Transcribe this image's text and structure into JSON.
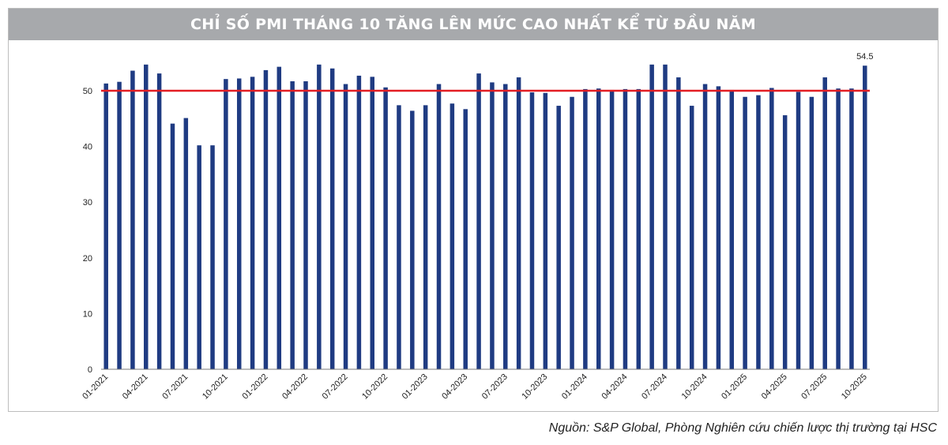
{
  "title": "CHỈ SỐ PMI THÁNG 10 TĂNG LÊN MỨC CAO NHẤT KỂ TỪ ĐẦU NĂM",
  "source": "Nguồn: S&P Global, Phòng Nghiên cứu chiến lược thị trường tại HSC",
  "colors": {
    "bar": "#1f3b82",
    "threshold": "#e31e24",
    "title_bg": "#a7a9ac"
  },
  "chart_data": {
    "type": "bar",
    "ylim": [
      0,
      60
    ],
    "yticks": [
      0,
      10,
      20,
      30,
      40,
      50
    ],
    "threshold": 50,
    "xtick_labels": [
      {
        "index": 0,
        "label": "01-2021"
      },
      {
        "index": 3,
        "label": "04-2021"
      },
      {
        "index": 6,
        "label": "07-2021"
      },
      {
        "index": 9,
        "label": "10-2021"
      },
      {
        "index": 12,
        "label": "01-2022"
      },
      {
        "index": 15,
        "label": "04-2022"
      },
      {
        "index": 18,
        "label": "07-2022"
      },
      {
        "index": 21,
        "label": "10-2022"
      },
      {
        "index": 24,
        "label": "01-2023"
      },
      {
        "index": 27,
        "label": "04-2023"
      },
      {
        "index": 30,
        "label": "07-2023"
      },
      {
        "index": 33,
        "label": "10-2023"
      },
      {
        "index": 36,
        "label": "01-2024"
      },
      {
        "index": 39,
        "label": "04-2024"
      },
      {
        "index": 42,
        "label": "07-2024"
      },
      {
        "index": 45,
        "label": "10-2024"
      },
      {
        "index": 48,
        "label": "01-2025"
      },
      {
        "index": 51,
        "label": "04-2025"
      },
      {
        "index": 54,
        "label": "07-2025"
      },
      {
        "index": 57,
        "label": "10-2025"
      }
    ],
    "values": [
      51.3,
      51.6,
      53.6,
      54.7,
      53.1,
      44.1,
      45.1,
      40.2,
      40.2,
      52.1,
      52.2,
      52.5,
      53.7,
      54.3,
      51.7,
      51.7,
      54.7,
      54.0,
      51.2,
      52.7,
      52.5,
      50.6,
      47.4,
      46.4,
      47.4,
      51.2,
      47.7,
      46.7,
      53.1,
      51.5,
      51.2,
      52.4,
      49.7,
      49.6,
      47.3,
      48.9,
      50.3,
      50.4,
      49.9,
      50.3,
      50.3,
      54.7,
      54.7,
      52.4,
      47.3,
      51.2,
      50.8,
      50.0,
      48.9,
      49.2,
      50.5,
      45.6,
      49.8,
      48.9,
      52.4,
      50.4,
      50.4,
      54.5
    ],
    "annotations": [
      {
        "index": 57,
        "label": "54.5"
      }
    ]
  }
}
